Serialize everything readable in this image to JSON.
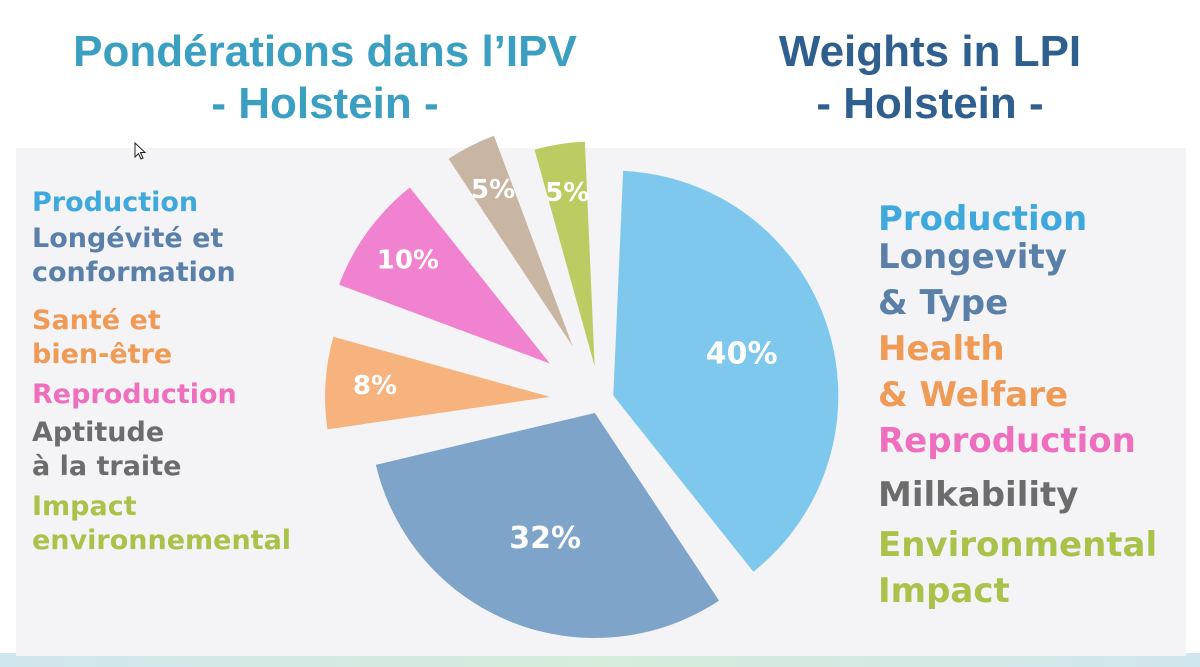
{
  "titles": {
    "french": [
      "Pondérations dans l’IPV",
      "- Holstein -"
    ],
    "english": [
      "Weights in LPI",
      "- Holstein -"
    ]
  },
  "legend_fr": [
    {
      "lines": [
        "Production"
      ],
      "color": "#3fa8dc"
    },
    {
      "lines": [
        "Longévité et",
        "conformation"
      ],
      "color": "#5a7fa8"
    },
    {
      "lines": [
        "Santé et",
        "bien-être"
      ],
      "color": "#ef9a55"
    },
    {
      "lines": [
        "Reproduction"
      ],
      "color": "#ee6fbd"
    },
    {
      "lines": [
        "Aptitude",
        "à la traite"
      ],
      "color": "#6c6c6c"
    },
    {
      "lines": [
        "Impact",
        "environnemental"
      ],
      "color": "#a8c24a"
    }
  ],
  "legend_en": [
    {
      "lines": [
        "Production"
      ],
      "color": "#3fa8dc"
    },
    {
      "lines": [
        "Longevity",
        "& Type"
      ],
      "color": "#5a7fa8"
    },
    {
      "lines": [
        "Health",
        "& Welfare"
      ],
      "color": "#ef9a55"
    },
    {
      "lines": [
        "Reproduction"
      ],
      "color": "#ee6fbd"
    },
    {
      "lines": [
        "Milkability"
      ],
      "color": "#6c6c6c"
    },
    {
      "lines": [
        "Environmental",
        "Impact"
      ],
      "color": "#a8c24a"
    }
  ],
  "chart_data": {
    "type": "pie",
    "slices": [
      {
        "label": "40%",
        "value": 40,
        "color": "#7ec8ee"
      },
      {
        "label": "32%",
        "value": 32,
        "color": "#7fa4c9"
      },
      {
        "label": "8%",
        "value": 8,
        "color": "#f6b37e"
      },
      {
        "label": "10%",
        "value": 10,
        "color": "#f082cf"
      },
      {
        "label": "5%",
        "value": 5,
        "color": "#c8b6a3"
      },
      {
        "label": "5%",
        "value": 5,
        "color": "#bccb62"
      }
    ]
  }
}
